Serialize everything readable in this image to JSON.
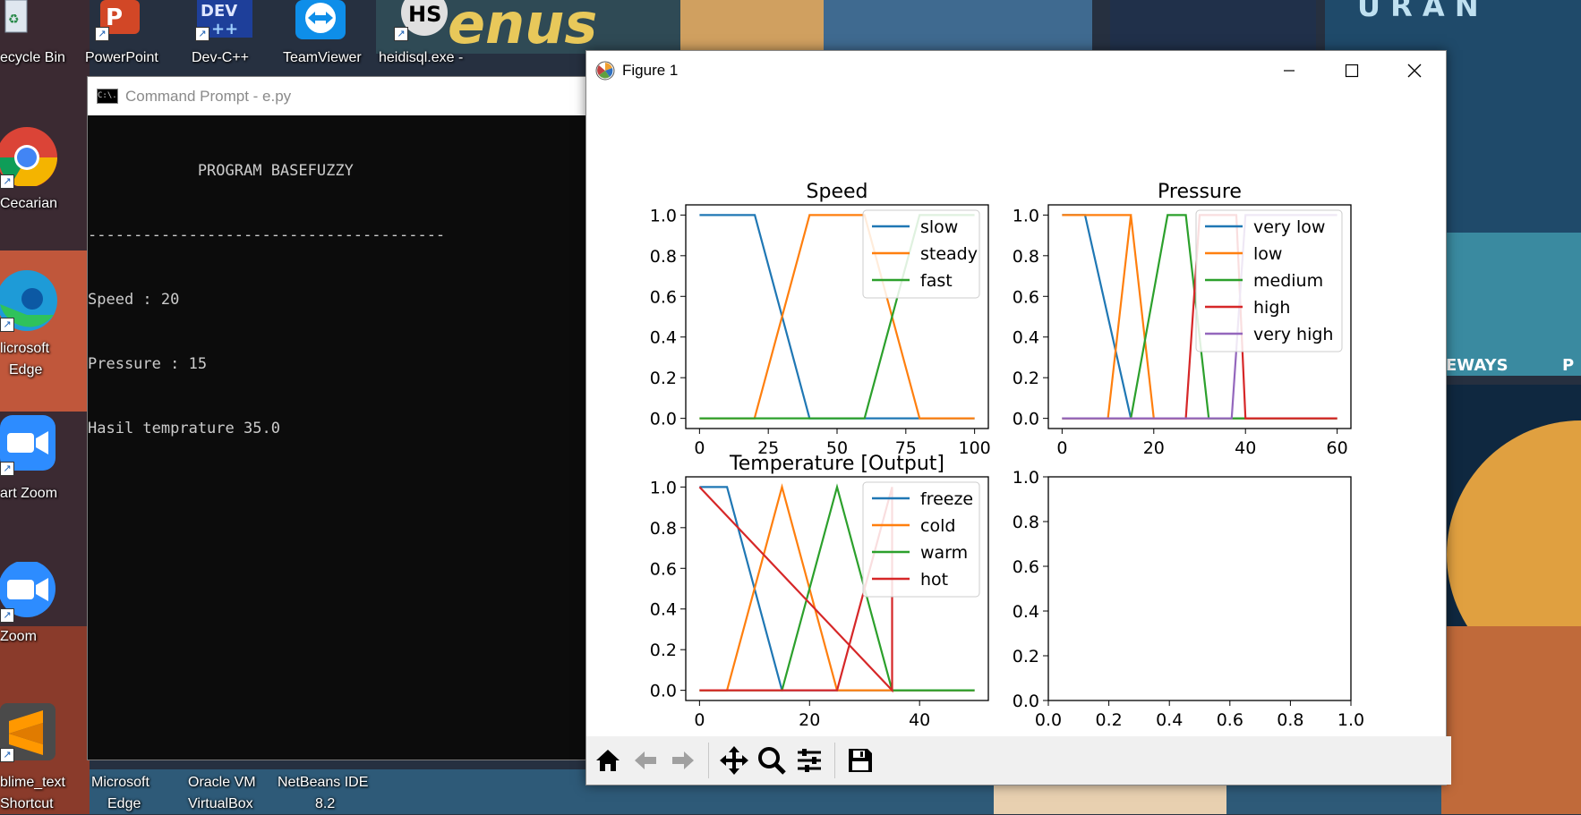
{
  "desktop": {
    "icons": [
      {
        "label": "ecycle Bin",
        "name": "recycle-bin"
      },
      {
        "label": "PowerPoint",
        "name": "powerpoint"
      },
      {
        "label": "Dev-C++",
        "name": "dev-cpp"
      },
      {
        "label": "TeamViewer",
        "name": "teamviewer"
      },
      {
        "label": "heidisql.exe -",
        "name": "heidisql"
      },
      {
        "label": "Cecarian",
        "name": "cecarian"
      },
      {
        "label": "licrosoft",
        "name": "microsoft-edge-left-1"
      },
      {
        "label": "Edge",
        "name": "microsoft-edge-left-2"
      },
      {
        "label": "art Zoom",
        "name": "start-zoom"
      },
      {
        "label": "Zoom",
        "name": "zoom"
      },
      {
        "label": "blime_text",
        "name": "sublime-text-1"
      },
      {
        "label": "Shortcut",
        "name": "sublime-text-2"
      },
      {
        "label": "Microsoft",
        "name": "microsoft-edge-bottom-1"
      },
      {
        "label": "Edge",
        "name": "microsoft-edge-bottom-2"
      },
      {
        "label": "Oracle VM",
        "name": "oracle-vm-1"
      },
      {
        "label": "VirtualBox",
        "name": "oracle-vm-2"
      },
      {
        "label": "NetBeans IDE",
        "name": "netbeans-1"
      },
      {
        "label": "8.2",
        "name": "netbeans-2"
      }
    ],
    "poster_text": {
      "venus": "enus",
      "uranus": "U R A N",
      "gateways": "EWAYS",
      "p": "P"
    }
  },
  "cmd": {
    "title": "Command Prompt - e.py",
    "icon_text": "C:\\.",
    "lines": [
      "            PROGRAM BASEFUZZY",
      "---------------------------------------",
      "Speed : 20",
      "Pressure : 15",
      "Hasil temprature 35.0"
    ]
  },
  "figure": {
    "title": "Figure 1",
    "toolbar": [
      "home-icon",
      "back-arrow-icon",
      "forward-arrow-icon",
      "pan-move-icon",
      "zoom-magnifier-icon",
      "configure-subplots-icon",
      "save-disk-icon"
    ]
  },
  "colors": {
    "blue": "#1f77b4",
    "orange": "#ff7f0e",
    "green": "#2ca02c",
    "red": "#d62728",
    "purple": "#9467bd"
  },
  "chart_data": [
    {
      "type": "line",
      "title": "Speed",
      "xlim": [
        0,
        100
      ],
      "ylim": [
        0,
        1
      ],
      "xticks": [
        "0",
        "25",
        "50",
        "75",
        "100"
      ],
      "yticks": [
        "0.0",
        "0.2",
        "0.4",
        "0.6",
        "0.8",
        "1.0"
      ],
      "legend": "top-right",
      "series": [
        {
          "name": "slow",
          "color": "#1f77b4",
          "x": [
            0,
            20,
            20.1,
            40,
            100
          ],
          "y": [
            1,
            1,
            1,
            0,
            0
          ]
        },
        {
          "name": "steady",
          "color": "#ff7f0e",
          "x": [
            0,
            20,
            40,
            60,
            80,
            100
          ],
          "y": [
            0,
            0,
            1,
            1,
            0,
            0
          ]
        },
        {
          "name": "fast",
          "color": "#2ca02c",
          "x": [
            0,
            60,
            80,
            100
          ],
          "y": [
            0,
            0,
            1,
            1
          ]
        }
      ]
    },
    {
      "type": "line",
      "title": "Pressure",
      "xlim": [
        0,
        60
      ],
      "ylim": [
        0,
        1
      ],
      "xticks": [
        "0",
        "20",
        "40",
        "60"
      ],
      "yticks": [
        "0.0",
        "0.2",
        "0.4",
        "0.6",
        "0.8",
        "1.0"
      ],
      "legend": "top-right",
      "series": [
        {
          "name": "very low",
          "color": "#1f77b4",
          "x": [
            0,
            5,
            15,
            60
          ],
          "y": [
            1,
            1,
            0,
            0
          ]
        },
        {
          "name": "low",
          "color": "#ff7f0e",
          "x": [
            0,
            15,
            15.01,
            10,
            15,
            20,
            60
          ],
          "y": [
            1,
            1,
            1,
            0,
            1,
            0,
            0
          ]
        },
        {
          "name": "medium",
          "color": "#2ca02c",
          "x": [
            0,
            15,
            23,
            27,
            32,
            60
          ],
          "y": [
            0,
            0,
            1,
            1,
            0,
            0
          ]
        },
        {
          "name": "high",
          "color": "#d62728",
          "x": [
            0,
            27,
            30,
            35,
            38,
            40,
            60
          ],
          "y": [
            0,
            0,
            1,
            1,
            1,
            0,
            0
          ]
        },
        {
          "name": "very high",
          "color": "#9467bd",
          "x": [
            0,
            37,
            40,
            60
          ],
          "y": [
            0,
            0,
            1,
            1
          ]
        }
      ]
    },
    {
      "type": "line",
      "title": "Temperature [Output]",
      "xlim": [
        0,
        50
      ],
      "ylim": [
        0,
        1
      ],
      "xticks": [
        "0",
        "20",
        "40"
      ],
      "yticks": [
        "0.0",
        "0.2",
        "0.4",
        "0.6",
        "0.8",
        "1.0"
      ],
      "legend": "top-right",
      "series": [
        {
          "name": "freeze",
          "color": "#1f77b4",
          "x": [
            0,
            5,
            15,
            50
          ],
          "y": [
            1,
            1,
            0,
            0
          ]
        },
        {
          "name": "cold",
          "color": "#ff7f0e",
          "x": [
            0,
            5,
            15,
            25,
            50
          ],
          "y": [
            0,
            0,
            1,
            0,
            0
          ]
        },
        {
          "name": "warm",
          "color": "#2ca02c",
          "x": [
            0,
            15,
            25,
            35,
            50
          ],
          "y": [
            0,
            0,
            1,
            0,
            0
          ]
        },
        {
          "name": "hot",
          "color": "#d62728",
          "x": [
            0,
            25,
            35,
            35,
            0
          ],
          "y": [
            0,
            0,
            1,
            0,
            1
          ]
        }
      ]
    },
    {
      "type": "line",
      "title": "",
      "xlim": [
        0,
        1
      ],
      "ylim": [
        0,
        1
      ],
      "xticks": [
        "0.0",
        "0.2",
        "0.4",
        "0.6",
        "0.8",
        "1.0"
      ],
      "yticks": [
        "0.0",
        "0.2",
        "0.4",
        "0.6",
        "0.8",
        "1.0"
      ],
      "series": []
    }
  ]
}
